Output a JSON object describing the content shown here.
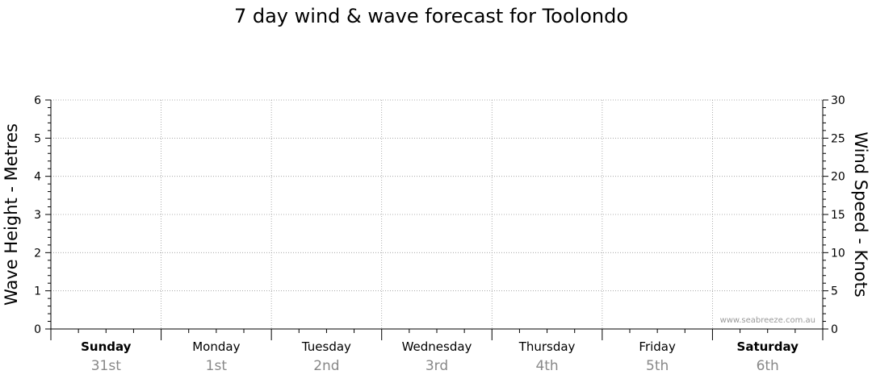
{
  "chart_data": {
    "type": "line",
    "title": "7 day wind & wave forecast for Toolondo",
    "ylabel_left": "Wave Height - Metres",
    "ylabel_right": "Wind Speed - Knots",
    "ylim_left": [
      0,
      6
    ],
    "ylim_right": [
      0,
      30
    ],
    "yticks_left": [
      "0",
      "1",
      "2",
      "3",
      "4",
      "5",
      "6"
    ],
    "yticks_right": [
      "0",
      "5",
      "10",
      "15",
      "20",
      "25",
      "30"
    ],
    "categories": [
      {
        "day": "Sunday",
        "date": "31st",
        "bold": true
      },
      {
        "day": "Monday",
        "date": "1st",
        "bold": false
      },
      {
        "day": "Tuesday",
        "date": "2nd",
        "bold": false
      },
      {
        "day": "Wednesday",
        "date": "3rd",
        "bold": false
      },
      {
        "day": "Thursday",
        "date": "4th",
        "bold": false
      },
      {
        "day": "Friday",
        "date": "5th",
        "bold": false
      },
      {
        "day": "Saturday",
        "date": "6th",
        "bold": true
      }
    ],
    "series": [],
    "grid": true,
    "watermark": "www.seabreeze.com.au"
  },
  "colors": {
    "axis": "#000000",
    "grid": "#999999",
    "date_text": "#888888",
    "watermark": "#999999"
  }
}
